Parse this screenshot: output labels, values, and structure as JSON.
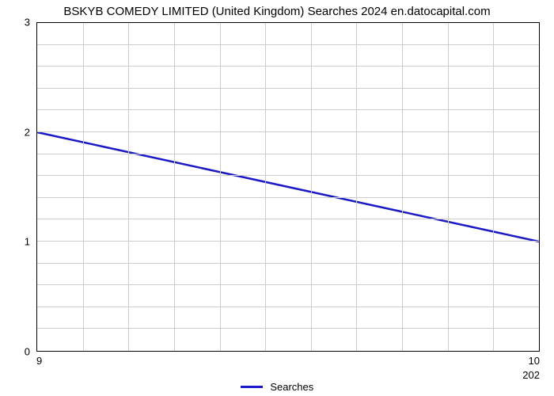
{
  "chart": {
    "type": "line",
    "title": "BSKYB COMEDY LIMITED (United Kingdom) Searches 2024 en.datocapital.com",
    "title_fontsize": 15,
    "background_color": "#ffffff",
    "grid_color": "#cccccc",
    "border_color": "#000000",
    "ylim": [
      0,
      3
    ],
    "y_ticks": [
      0,
      1,
      2,
      3
    ],
    "y_minor_per_major": 5,
    "x_ticks_left": "9",
    "x_ticks_right": "10",
    "x_sublabel_right": "202",
    "x_minor_count": 11,
    "series": {
      "label": "Searches",
      "color": "#1919c8",
      "line_width": 2.5,
      "points": [
        {
          "x": 0.0,
          "y": 2.0
        },
        {
          "x": 1.0,
          "y": 1.0
        }
      ]
    }
  }
}
